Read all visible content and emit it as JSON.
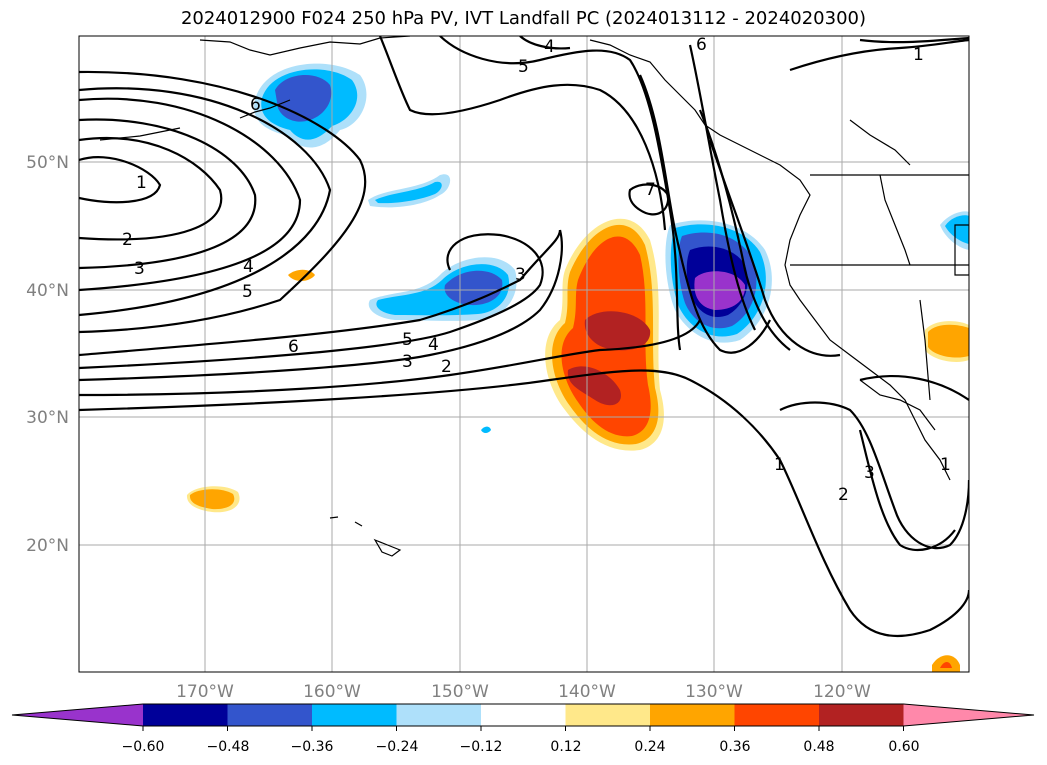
{
  "title": "2024012900 F024 250 hPa PV, IVT Landfall PC (2024013112 - 2024020300)",
  "map": {
    "lon_labels": [
      "170°W",
      "160°W",
      "150°W",
      "140°W",
      "130°W",
      "120°W"
    ],
    "lat_labels": [
      "50°N",
      "40°N",
      "30°N",
      "20°N"
    ],
    "contour_labels": [
      "1",
      "2",
      "3",
      "4",
      "5",
      "6",
      "7"
    ]
  },
  "colorbar": {
    "ticks": [
      "−0.60",
      "−0.48",
      "−0.36",
      "−0.24",
      "−0.12",
      "0.12",
      "0.24",
      "0.36",
      "0.48",
      "0.60"
    ],
    "colors": [
      "#9933cc",
      "#000099",
      "#3355cc",
      "#00bbff",
      "#aee0fa",
      "#ffffff",
      "#ffe88a",
      "#ffa500",
      "#ff4500",
      "#b22222",
      "#ff88aa"
    ]
  },
  "chart_data": {
    "type": "heatmap",
    "title": "2024012900 F024 250 hPa PV, IVT Landfall PC (2024013112 - 2024020300)",
    "x_ticks": [
      "170°W",
      "160°W",
      "150°W",
      "140°W",
      "130°W",
      "120°W"
    ],
    "y_ticks": [
      "50°N",
      "40°N",
      "30°N",
      "20°N"
    ],
    "colorbar_levels": [
      -0.6,
      -0.48,
      -0.36,
      -0.24,
      -0.12,
      0.12,
      0.24,
      0.36,
      0.48,
      0.6
    ],
    "colorbar_extend": "both",
    "contour_levels": [
      1,
      2,
      3,
      4,
      5,
      6,
      7
    ],
    "grid": true
  }
}
